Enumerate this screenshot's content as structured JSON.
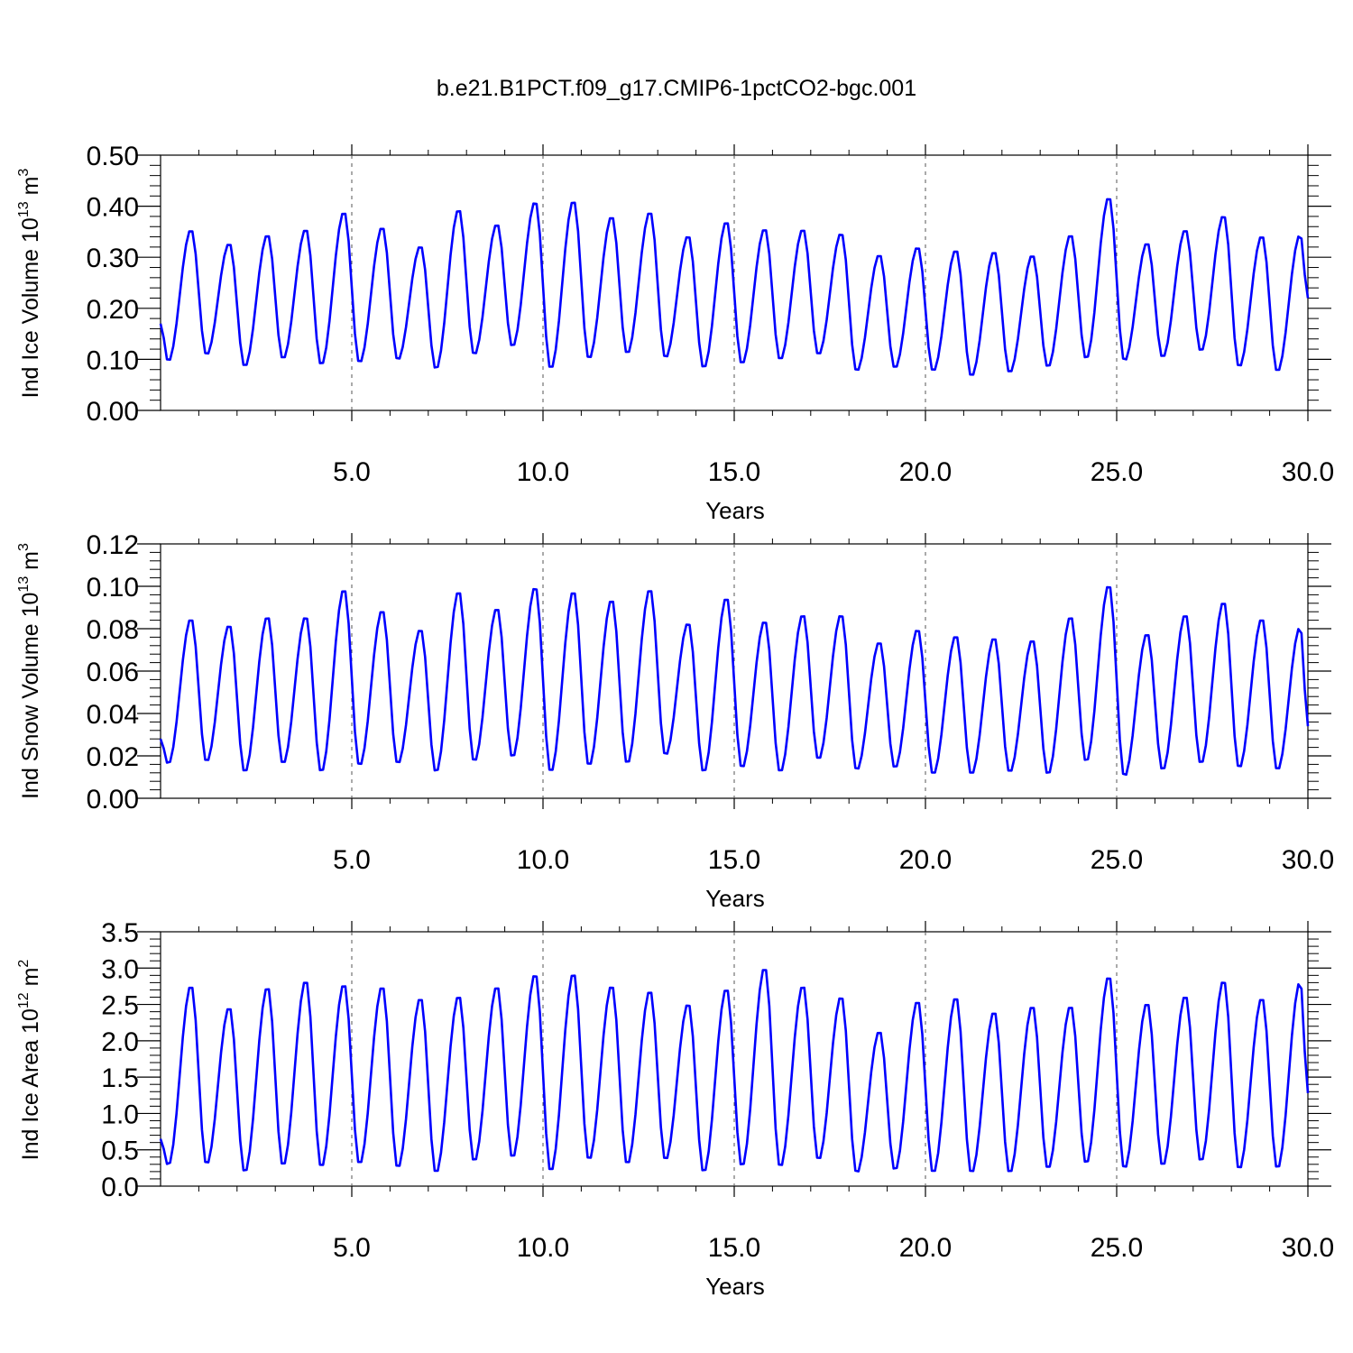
{
  "figure": {
    "title": "b.e21.B1PCT.f09_g17.CMIP6-1pctCO2-bgc.001",
    "line_color": "#0000ff"
  },
  "chart_data": [
    {
      "type": "line",
      "title": "",
      "xlabel": "Years",
      "ylabel": "Ind Ice Volume 10",
      "ylabel_exponent": "13",
      "ylabel_unit": "m",
      "ylabel_unit_exponent": "3",
      "xlim": [
        0.0,
        30.0
      ],
      "ylim": [
        0.0,
        0.5
      ],
      "xticks": [
        "5.0",
        "10.0",
        "15.0",
        "20.0",
        "25.0",
        "30.0"
      ],
      "yticks": [
        "0.00",
        "0.10",
        "0.20",
        "0.30",
        "0.40",
        "0.50"
      ],
      "grid": "dashed vertical lines every 5 years",
      "series": [
        {
          "peaks": [
            0.355,
            0.328,
            0.345,
            0.356,
            0.39,
            0.36,
            0.323,
            0.395,
            0.366,
            0.41,
            0.412,
            0.381,
            0.39,
            0.343,
            0.371,
            0.357,
            0.356,
            0.348,
            0.306,
            0.321,
            0.315,
            0.312,
            0.305,
            0.345,
            0.419,
            0.329,
            0.355,
            0.383,
            0.343,
            0.345
          ],
          "troughs": [
            0.095,
            0.108,
            0.085,
            0.1,
            0.088,
            0.092,
            0.098,
            0.08,
            0.108,
            0.124,
            0.08,
            0.1,
            0.11,
            0.102,
            0.082,
            0.09,
            0.098,
            0.108,
            0.076,
            0.082,
            0.076,
            0.066,
            0.073,
            0.084,
            0.1,
            0.096,
            0.103,
            0.115,
            0.084,
            0.075
          ],
          "start": 0.17,
          "end": 0.22
        }
      ]
    },
    {
      "type": "line",
      "title": "",
      "xlabel": "Years",
      "ylabel": "Ind Snow Volume 10",
      "ylabel_exponent": "13",
      "ylabel_unit": "m",
      "ylabel_unit_exponent": "3",
      "xlim": [
        0.0,
        30.0
      ],
      "ylim": [
        0.0,
        0.12
      ],
      "xticks": [
        "5.0",
        "10.0",
        "15.0",
        "20.0",
        "25.0",
        "30.0"
      ],
      "yticks": [
        "0.00",
        "0.02",
        "0.04",
        "0.06",
        "0.08",
        "0.10",
        "0.12"
      ],
      "grid": "dashed vertical lines every 5 years",
      "series": [
        {
          "peaks": [
            0.085,
            0.082,
            0.086,
            0.086,
            0.099,
            0.089,
            0.08,
            0.098,
            0.09,
            0.1,
            0.098,
            0.094,
            0.099,
            0.083,
            0.095,
            0.084,
            0.087,
            0.087,
            0.074,
            0.08,
            0.077,
            0.076,
            0.075,
            0.086,
            0.101,
            0.078,
            0.087,
            0.093,
            0.085,
            0.081
          ],
          "troughs": [
            0.016,
            0.017,
            0.012,
            0.016,
            0.012,
            0.015,
            0.016,
            0.012,
            0.017,
            0.019,
            0.012,
            0.015,
            0.016,
            0.02,
            0.012,
            0.014,
            0.012,
            0.018,
            0.013,
            0.014,
            0.011,
            0.011,
            0.012,
            0.011,
            0.017,
            0.01,
            0.013,
            0.016,
            0.014,
            0.013
          ],
          "start": 0.028,
          "end": 0.034
        }
      ]
    },
    {
      "type": "line",
      "title": "",
      "xlabel": "Years",
      "ylabel": "Ind Ice Area 10",
      "ylabel_exponent": "12",
      "ylabel_unit": "m",
      "ylabel_unit_exponent": "2",
      "xlim": [
        0.0,
        30.0
      ],
      "ylim": [
        0.0,
        3.5
      ],
      "xticks": [
        "5.0",
        "10.0",
        "15.0",
        "20.0",
        "25.0",
        "30.0"
      ],
      "yticks": [
        "0.0",
        "0.5",
        "1.0",
        "1.5",
        "2.0",
        "2.5",
        "3.0",
        "3.5"
      ],
      "grid": "dashed vertical lines every 5 years",
      "series": [
        {
          "peaks": [
            2.77,
            2.47,
            2.75,
            2.84,
            2.79,
            2.76,
            2.6,
            2.63,
            2.76,
            2.93,
            2.94,
            2.77,
            2.7,
            2.52,
            2.73,
            3.02,
            2.77,
            2.62,
            2.14,
            2.56,
            2.61,
            2.41,
            2.49,
            2.49,
            2.9,
            2.53,
            2.63,
            2.84,
            2.6,
            2.82
          ],
          "troughs": [
            0.28,
            0.29,
            0.18,
            0.27,
            0.25,
            0.29,
            0.24,
            0.17,
            0.33,
            0.38,
            0.19,
            0.35,
            0.29,
            0.35,
            0.18,
            0.26,
            0.25,
            0.35,
            0.17,
            0.21,
            0.17,
            0.17,
            0.17,
            0.23,
            0.3,
            0.23,
            0.27,
            0.33,
            0.22,
            0.23
          ],
          "start": 0.65,
          "end": 1.28
        }
      ]
    }
  ]
}
